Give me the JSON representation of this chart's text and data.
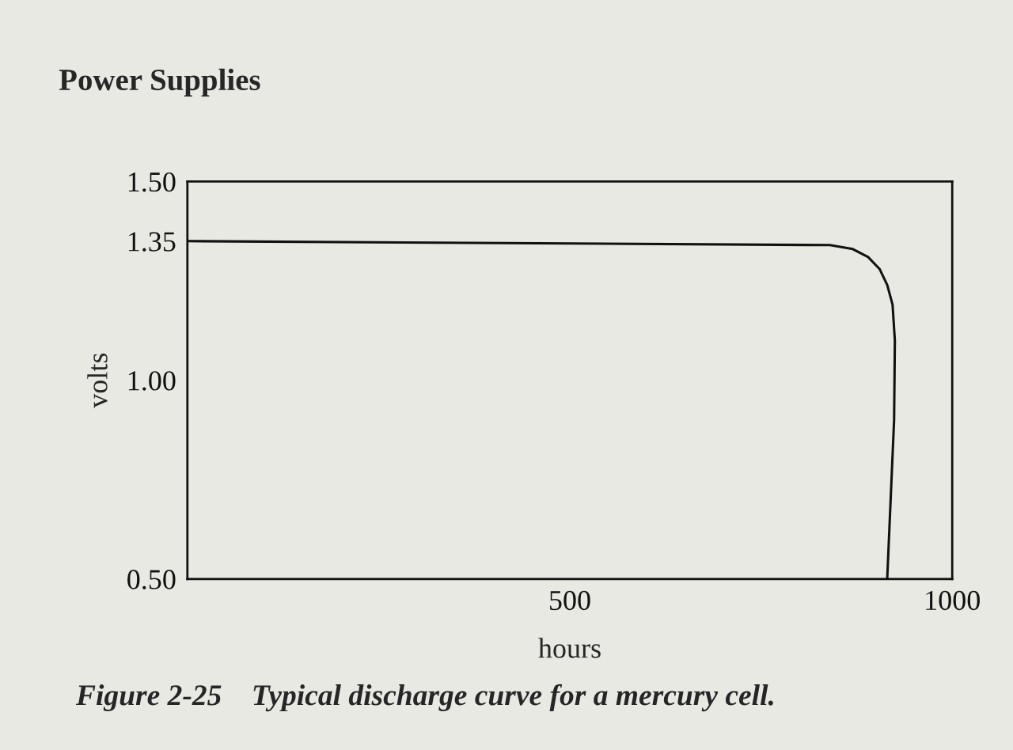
{
  "chart_data": {
    "type": "line",
    "title": "Power Supplies",
    "xlabel": "hours",
    "ylabel": "volts",
    "annotations": [
      "Figure 2-25    Typical discharge curve for a mercury cell."
    ],
    "x": [
      0,
      840,
      870,
      890,
      905,
      915,
      922,
      925,
      924,
      915
    ],
    "series": [
      {
        "color": "#111111",
        "values": [
          1.35,
          1.34,
          1.33,
          1.31,
          1.28,
          1.24,
          1.19,
          1.1,
          0.9,
          0.5
        ]
      }
    ],
    "xlim": [
      0,
      1000
    ],
    "ylim": [
      0.5,
      1.5
    ],
    "xticks": [
      500,
      1000
    ],
    "yticks": [
      {
        "value": 0.5,
        "label": "0.50"
      },
      {
        "value": 1.0,
        "label": "1.00"
      },
      {
        "value": 1.35,
        "label": "1.35"
      },
      {
        "value": 1.5,
        "label": "1.50"
      }
    ],
    "grid": false,
    "marker": "none",
    "line_style": "solid"
  }
}
